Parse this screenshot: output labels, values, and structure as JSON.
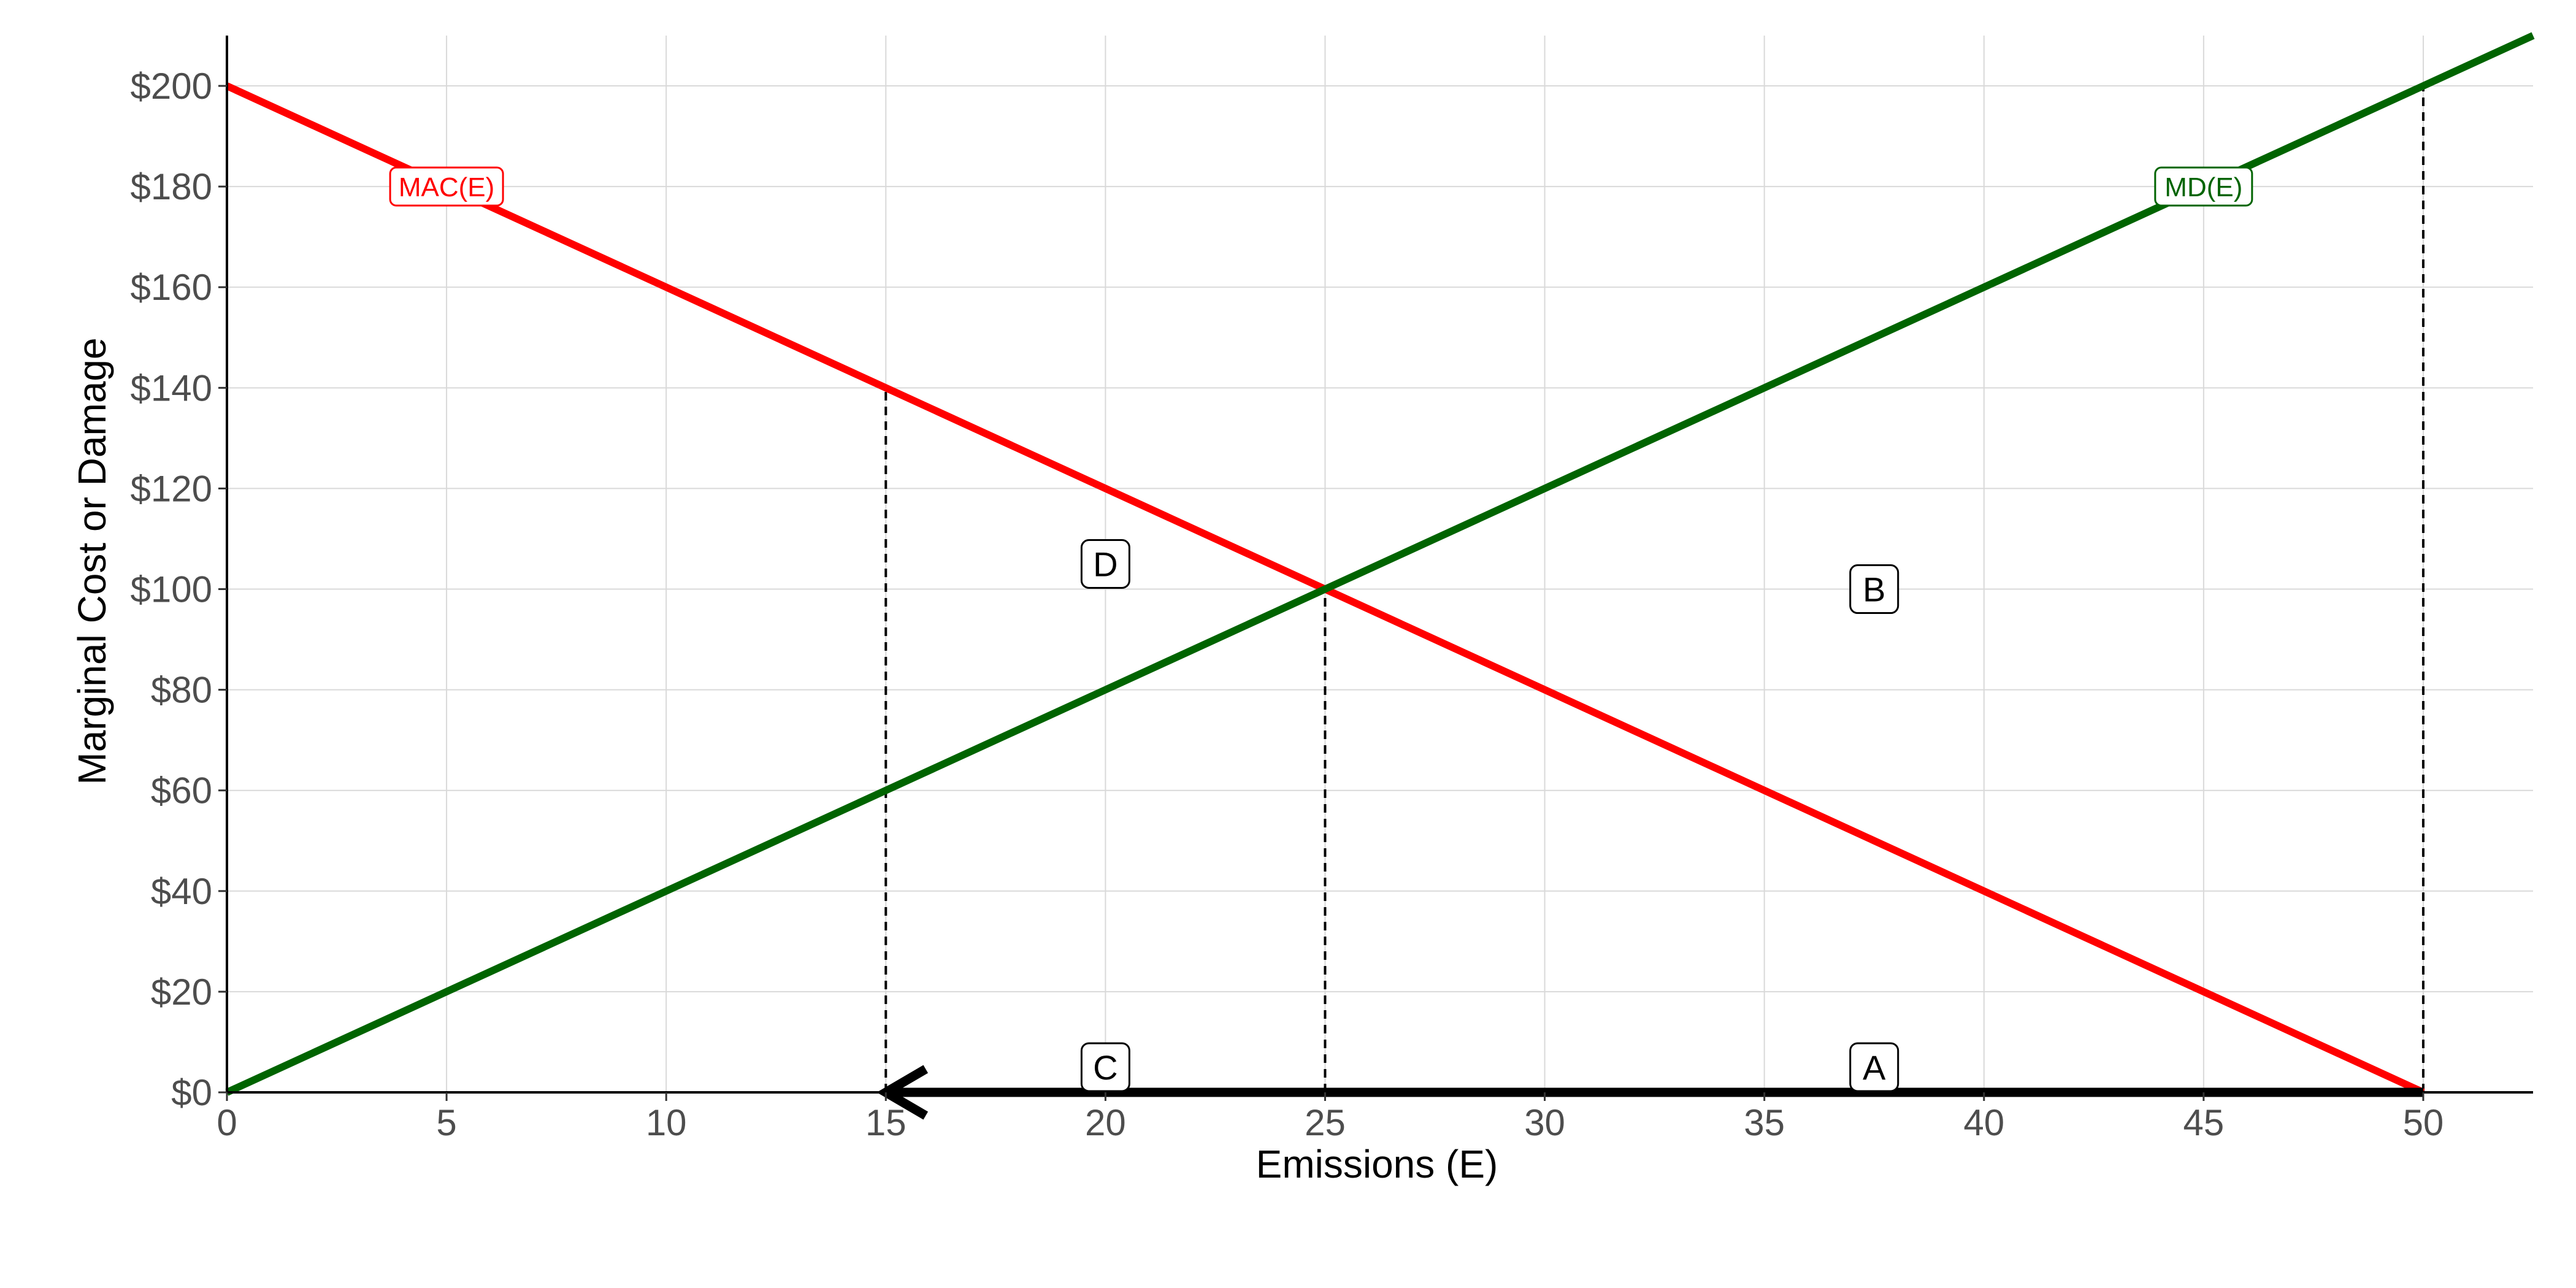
{
  "chart_data": {
    "type": "line",
    "xlabel": "Emissions (E)",
    "ylabel": "Marginal Cost or Damage",
    "xlim": [
      0,
      52.5
    ],
    "ylim": [
      0,
      210
    ],
    "x_ticks": [
      0,
      5,
      10,
      15,
      20,
      25,
      30,
      35,
      40,
      45,
      50
    ],
    "x_tick_labels": [
      "0",
      "5",
      "10",
      "15",
      "20",
      "25",
      "30",
      "35",
      "40",
      "45",
      "50"
    ],
    "y_ticks": [
      0,
      20,
      40,
      60,
      80,
      100,
      120,
      140,
      160,
      180,
      200
    ],
    "y_tick_labels": [
      "$0",
      "$20",
      "$40",
      "$60",
      "$80",
      "$100",
      "$120",
      "$140",
      "$160",
      "$180",
      "$200"
    ],
    "grid": true,
    "series": [
      {
        "name": "MAC(E)",
        "color": "#ff0000",
        "x": [
          0,
          50
        ],
        "y": [
          200,
          0
        ],
        "label_at": [
          5,
          180
        ]
      },
      {
        "name": "MD(E)",
        "color": "#006400",
        "x": [
          0,
          52.5
        ],
        "y": [
          0,
          210
        ],
        "label_at": [
          45,
          180
        ]
      }
    ],
    "reference_lines": [
      {
        "x": 15,
        "y_top": 140
      },
      {
        "x": 25,
        "y_top": 100
      },
      {
        "x": 50,
        "y_top": 200
      }
    ],
    "arrow": {
      "from": [
        50,
        0
      ],
      "to": [
        15,
        0
      ],
      "color": "#000000"
    },
    "area_labels": [
      {
        "text": "D",
        "x": 20,
        "y": 105
      },
      {
        "text": "B",
        "x": 37.5,
        "y": 100
      },
      {
        "text": "C",
        "x": 20,
        "y": 5
      },
      {
        "text": "A",
        "x": 37.5,
        "y": 5
      }
    ]
  }
}
